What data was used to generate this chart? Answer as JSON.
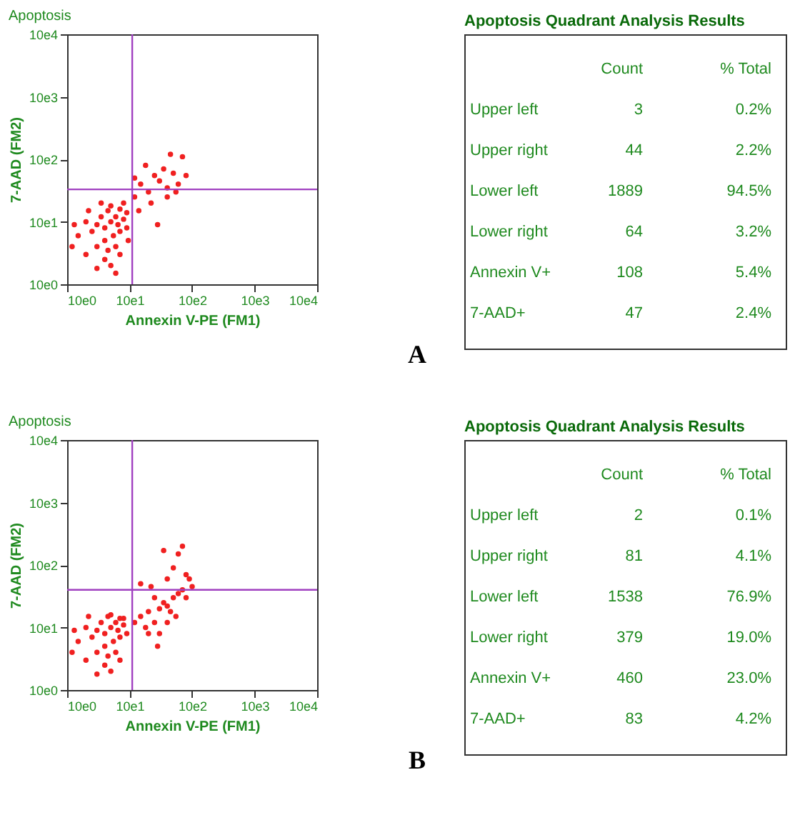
{
  "chart_data": [
    {
      "type": "scatter",
      "title": "Apoptosis",
      "xlabel": "Annexin V-PE (FM1)",
      "ylabel": "7-AAD (FM2)",
      "log": "xy",
      "grid": false,
      "xlim": [
        10,
        100000
      ],
      "ylim": [
        10,
        100000
      ],
      "xticks": [
        {
          "value": 10,
          "label": "10e0"
        },
        {
          "value": 100,
          "label": "10e1"
        },
        {
          "value": 1000,
          "label": "10e2"
        },
        {
          "value": 10000,
          "label": "10e3"
        },
        {
          "value": 100000,
          "label": "10e4"
        }
      ],
      "yticks": [
        {
          "value": 10,
          "label": "10e0"
        },
        {
          "value": 100,
          "label": "10e1"
        },
        {
          "value": 1000,
          "label": "10e2"
        },
        {
          "value": 10000,
          "label": "10e3"
        },
        {
          "value": 100000,
          "label": "10e4"
        }
      ],
      "ref_lines": [
        {
          "axis": "x",
          "value": 110,
          "color": "#a040c0"
        },
        {
          "axis": "y",
          "value": 330,
          "color": "#a040c0"
        }
      ],
      "annotations": [
        "A"
      ],
      "series": [
        {
          "color": "#f02020",
          "x": [
            50,
            40,
            60,
            30,
            70,
            45,
            55,
            35,
            65,
            40,
            50,
            80,
            25,
            20,
            30,
            60,
            70,
            90,
            15,
            13,
            20,
            40,
            50,
            60,
            30,
            12,
            80,
            90,
            22,
            35,
            45,
            70,
            95,
            120,
            150,
            200,
            250,
            300,
            400,
            500,
            600,
            450,
            700,
            350,
            180,
            220,
            280,
            140,
            550,
            800,
            120,
            400
          ],
          "values": [
            100,
            80,
            120,
            90,
            70,
            150,
            60,
            120,
            90,
            50,
            180,
            110,
            70,
            100,
            40,
            40,
            160,
            80,
            60,
            90,
            30,
            25,
            20,
            15,
            18,
            40,
            200,
            140,
            150,
            200,
            35,
            30,
            50,
            250,
            400,
            300,
            550,
            450,
            350,
            600,
            400,
            1200,
            1100,
            700,
            800,
            200,
            90,
            150,
            300,
            550,
            500,
            250
          ]
        }
      ]
    },
    {
      "type": "other",
      "title": "Apoptosis Quadrant Analysis Results",
      "data_labels": true,
      "categories": [
        "Upper left",
        "Upper right",
        "Lower left",
        "Lower right",
        "Annexin V+",
        "7-AAD+"
      ],
      "series": [
        {
          "name": "Count",
          "values": [
            3,
            44,
            1889,
            64,
            108,
            47
          ]
        },
        {
          "name": "% Total",
          "values": [
            0.2,
            2.2,
            94.5,
            3.2,
            5.4,
            2.4
          ],
          "value_labels": [
            "0.2%",
            "2.2%",
            "94.5%",
            "3.2%",
            "5.4%",
            "2.4%"
          ]
        }
      ]
    },
    {
      "type": "scatter",
      "title": "Apoptosis",
      "xlabel": "Annexin V-PE (FM1)",
      "ylabel": "7-AAD (FM2)",
      "log": "xy",
      "grid": false,
      "xlim": [
        10,
        100000
      ],
      "ylim": [
        10,
        100000
      ],
      "xticks": [
        {
          "value": 10,
          "label": "10e0"
        },
        {
          "value": 100,
          "label": "10e1"
        },
        {
          "value": 1000,
          "label": "10e2"
        },
        {
          "value": 10000,
          "label": "10e3"
        },
        {
          "value": 100000,
          "label": "10e4"
        }
      ],
      "yticks": [
        {
          "value": 10,
          "label": "10e0"
        },
        {
          "value": 100,
          "label": "10e1"
        },
        {
          "value": 1000,
          "label": "10e2"
        },
        {
          "value": 10000,
          "label": "10e3"
        },
        {
          "value": 100000,
          "label": "10e4"
        }
      ],
      "ref_lines": [
        {
          "axis": "x",
          "value": 110,
          "color": "#a040c0"
        },
        {
          "axis": "y",
          "value": 400,
          "color": "#a040c0"
        }
      ],
      "annotations": [
        "B"
      ],
      "series": [
        {
          "color": "#f02020",
          "x": [
            50,
            40,
            60,
            30,
            70,
            45,
            55,
            35,
            65,
            40,
            50,
            80,
            25,
            20,
            30,
            60,
            70,
            90,
            15,
            13,
            20,
            40,
            50,
            30,
            12,
            80,
            22,
            45,
            70,
            120,
            150,
            200,
            250,
            300,
            350,
            400,
            500,
            600,
            700,
            800,
            450,
            300,
            200,
            250,
            400,
            500,
            700,
            600,
            800,
            350,
            150,
            220,
            1000,
            900,
            180,
            550,
            280,
            400
          ],
          "values": [
            100,
            80,
            120,
            90,
            70,
            150,
            60,
            120,
            90,
            50,
            160,
            110,
            70,
            100,
            40,
            40,
            140,
            80,
            60,
            90,
            30,
            25,
            20,
            18,
            40,
            140,
            150,
            35,
            30,
            120,
            150,
            180,
            120,
            200,
            250,
            220,
            300,
            350,
            400,
            300,
            180,
            80,
            80,
            300,
            600,
            900,
            2000,
            1500,
            700,
            1700,
            500,
            450,
            450,
            600,
            100,
            150,
            50,
            120
          ]
        }
      ]
    },
    {
      "type": "other",
      "title": "Apoptosis Quadrant Analysis Results",
      "data_labels": true,
      "categories": [
        "Upper left",
        "Upper right",
        "Lower left",
        "Lower right",
        "Annexin V+",
        "7-AAD+"
      ],
      "series": [
        {
          "name": "Count",
          "values": [
            2,
            81,
            1538,
            379,
            460,
            83
          ]
        },
        {
          "name": "% Total",
          "values": [
            0.1,
            4.1,
            76.9,
            19.0,
            23.0,
            4.2
          ],
          "value_labels": [
            "0.1%",
            "4.1%",
            "76.9%",
            "19.0%",
            "23.0%",
            "4.2%"
          ]
        }
      ]
    }
  ]
}
